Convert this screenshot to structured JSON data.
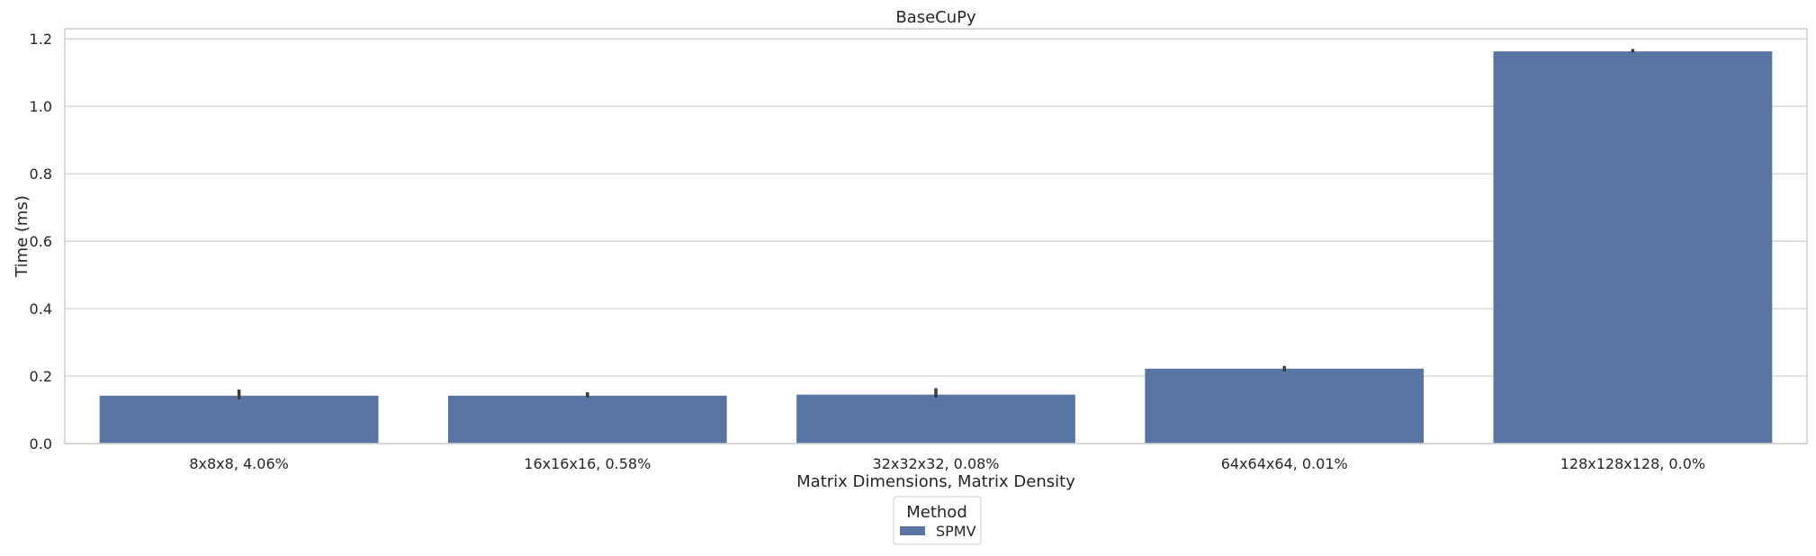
{
  "chart_data": {
    "type": "bar",
    "title": "BaseCuPy",
    "xlabel": "Matrix Dimensions, Matrix Density",
    "ylabel": "Time (ms)",
    "ylim": [
      0,
      1.23
    ],
    "yticks": [
      0.0,
      0.2,
      0.4,
      0.6,
      0.8,
      1.0,
      1.2
    ],
    "ytick_labels": [
      "0.0",
      "0.2",
      "0.4",
      "0.6",
      "0.8",
      "1.0",
      "1.2"
    ],
    "categories": [
      "8x8x8, 4.06%",
      "16x16x16, 0.58%",
      "32x32x32, 0.08%",
      "64x64x64, 0.01%",
      "128x128x128, 0.0%"
    ],
    "series": [
      {
        "name": "SPMV",
        "color": "#5875a4",
        "values": [
          0.142,
          0.142,
          0.145,
          0.222,
          1.163
        ],
        "error_low": [
          0.131,
          0.136,
          0.136,
          0.214,
          1.16
        ],
        "error_high": [
          0.16,
          0.152,
          0.164,
          0.23,
          1.17
        ]
      }
    ],
    "grid": true,
    "legend": {
      "title": "Method",
      "position": "bottom-center"
    }
  }
}
